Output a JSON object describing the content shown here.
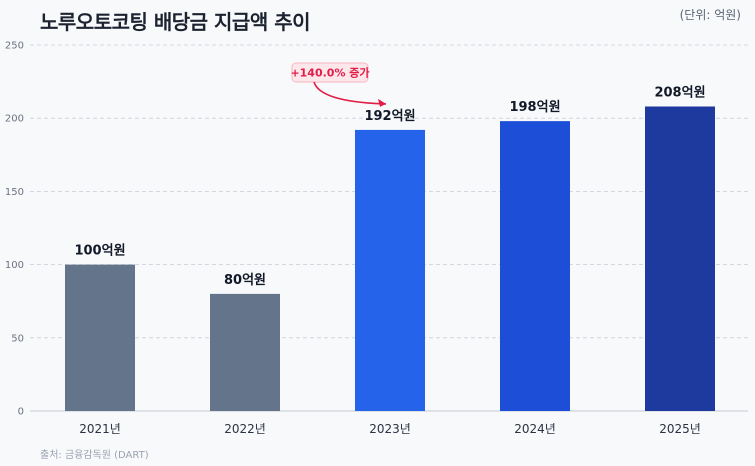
{
  "header": {
    "title": "노루오토코팅 배당금 지급액 추이",
    "unit": "(단위: 억원)"
  },
  "footer": {
    "source": "출처: 금융감독원 (DART)"
  },
  "colors": {
    "grid": "#c9ced8",
    "axis": "#c5cad3",
    "bar_2021": "#64748b",
    "bar_2022": "#64748b",
    "bar_2023": "#2563eb",
    "bar_2024": "#1d4ed8",
    "bar_2025": "#1e3a9f",
    "annotation": "#e11d48",
    "annotation_bg": "#fde7ea"
  },
  "chart_data": {
    "type": "bar",
    "categories": [
      "2021년",
      "2022년",
      "2023년",
      "2024년",
      "2025년"
    ],
    "values": [
      100,
      80,
      192,
      198,
      208
    ],
    "data_labels": [
      "100억원",
      "80억원",
      "192억원",
      "198억원",
      "208억원"
    ],
    "bar_colors": [
      "#64748b",
      "#64748b",
      "#2563eb",
      "#1d4ed8",
      "#1e3a9f"
    ],
    "ylim": [
      0,
      250
    ],
    "yticks": [
      0,
      50,
      100,
      150,
      200,
      250
    ],
    "grid": true,
    "xlabel": "",
    "ylabel": "",
    "annotation": {
      "text": "+140.0% 증가",
      "target_category": "2023년"
    }
  }
}
